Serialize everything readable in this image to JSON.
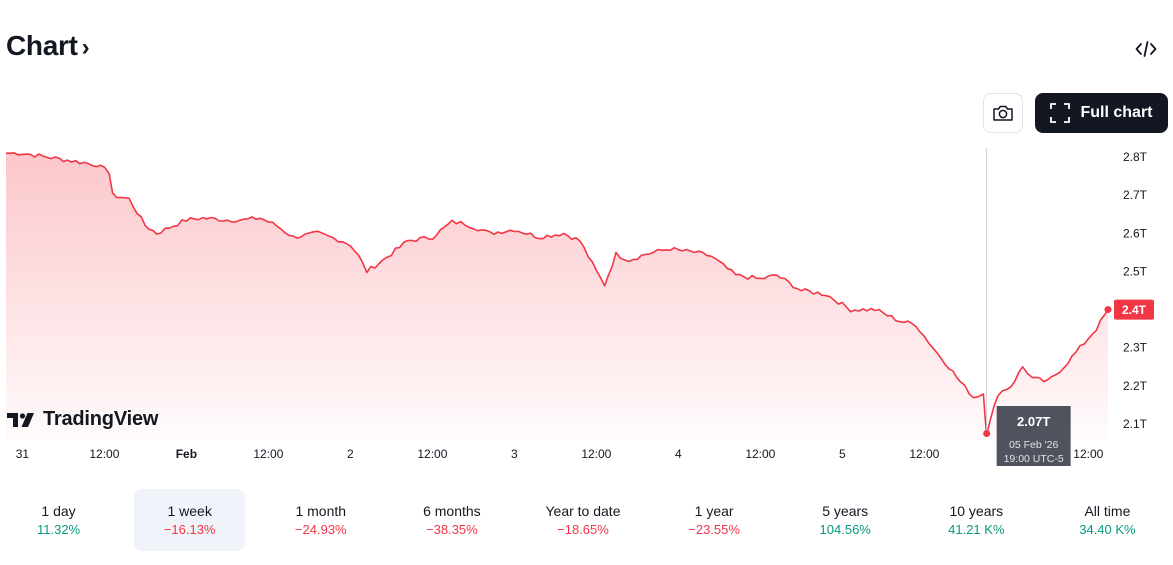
{
  "header": {
    "title": "Chart",
    "chevron": "›"
  },
  "toolbar": {
    "embed_icon": "code-icon",
    "camera_icon": "camera-icon",
    "full_chart_label": "Full chart",
    "full_chart_icon": "fullscreen-icon"
  },
  "brand": {
    "logo_text": "TradingView"
  },
  "colors": {
    "line": "#f23645",
    "positive": "#089981",
    "negative": "#f23645",
    "active_bg": "#f0f3fa",
    "button_dark": "#131722"
  },
  "chart_data": {
    "type": "area",
    "ylim": [
      2.06,
      2.83
    ],
    "y_ticks": [
      2.1,
      2.2,
      2.3,
      2.4,
      2.5,
      2.6,
      2.7,
      2.8
    ],
    "y_tick_labels": [
      "2.1T",
      "2.2T",
      "2.3T",
      "2.4T",
      "2.5T",
      "2.6T",
      "2.7T",
      "2.8T"
    ],
    "x_tick_labels": [
      "31",
      "12:00",
      "Feb",
      "12:00",
      "2",
      "12:00",
      "3",
      "12:00",
      "4",
      "12:00",
      "5",
      "12:00",
      "12:00"
    ],
    "x_ticks": [
      0.0,
      0.5,
      1.0,
      1.5,
      2.0,
      2.5,
      3.0,
      3.5,
      4.0,
      4.5,
      5.0,
      5.5,
      6.5
    ],
    "x_bold": [
      false,
      false,
      true,
      false,
      false,
      false,
      false,
      false,
      false,
      false,
      false,
      false,
      false
    ],
    "points": [
      [
        -0.1,
        2.81
      ],
      [
        0.0,
        2.81
      ],
      [
        0.15,
        2.8
      ],
      [
        0.3,
        2.79
      ],
      [
        0.45,
        2.78
      ],
      [
        0.53,
        2.76
      ],
      [
        0.55,
        2.7
      ],
      [
        0.65,
        2.69
      ],
      [
        0.75,
        2.62
      ],
      [
        0.82,
        2.6
      ],
      [
        0.92,
        2.62
      ],
      [
        1.0,
        2.635
      ],
      [
        1.1,
        2.64
      ],
      [
        1.25,
        2.635
      ],
      [
        1.35,
        2.635
      ],
      [
        1.45,
        2.64
      ],
      [
        1.55,
        2.62
      ],
      [
        1.65,
        2.59
      ],
      [
        1.8,
        2.6
      ],
      [
        1.95,
        2.58
      ],
      [
        2.0,
        2.57
      ],
      [
        2.05,
        2.54
      ],
      [
        2.1,
        2.5
      ],
      [
        2.2,
        2.53
      ],
      [
        2.35,
        2.58
      ],
      [
        2.5,
        2.59
      ],
      [
        2.62,
        2.63
      ],
      [
        2.7,
        2.625
      ],
      [
        2.85,
        2.6
      ],
      [
        3.0,
        2.61
      ],
      [
        3.15,
        2.59
      ],
      [
        3.3,
        2.6
      ],
      [
        3.4,
        2.58
      ],
      [
        3.5,
        2.5
      ],
      [
        3.55,
        2.465
      ],
      [
        3.62,
        2.545
      ],
      [
        3.7,
        2.53
      ],
      [
        3.8,
        2.545
      ],
      [
        3.95,
        2.56
      ],
      [
        4.0,
        2.555
      ],
      [
        4.1,
        2.55
      ],
      [
        4.2,
        2.54
      ],
      [
        4.35,
        2.49
      ],
      [
        4.5,
        2.48
      ],
      [
        4.6,
        2.49
      ],
      [
        4.75,
        2.45
      ],
      [
        4.9,
        2.44
      ],
      [
        5.05,
        2.4
      ],
      [
        5.2,
        2.4
      ],
      [
        5.35,
        2.37
      ],
      [
        5.45,
        2.36
      ],
      [
        5.5,
        2.33
      ],
      [
        5.58,
        2.285
      ],
      [
        5.65,
        2.25
      ],
      [
        5.72,
        2.21
      ],
      [
        5.8,
        2.17
      ],
      [
        5.86,
        2.18
      ],
      [
        5.88,
        2.075
      ],
      [
        5.95,
        2.18
      ],
      [
        6.03,
        2.2
      ],
      [
        6.1,
        2.25
      ],
      [
        6.16,
        2.22
      ],
      [
        6.25,
        2.21
      ],
      [
        6.35,
        2.25
      ],
      [
        6.45,
        2.3
      ],
      [
        6.55,
        2.35
      ],
      [
        6.62,
        2.4
      ]
    ],
    "last_value_label": "2.4T",
    "crosshair": {
      "x": 5.88,
      "value_label": "2.07T",
      "date_label": "05 Feb '26",
      "time_label": "19:00 UTC-5"
    }
  },
  "periods": [
    {
      "label": "1 day",
      "change": "11.32%",
      "dir": "pos"
    },
    {
      "label": "1 week",
      "change": "−16.13%",
      "dir": "neg",
      "active": true
    },
    {
      "label": "1 month",
      "change": "−24.93%",
      "dir": "neg"
    },
    {
      "label": "6 months",
      "change": "−38.35%",
      "dir": "neg"
    },
    {
      "label": "Year to date",
      "change": "−18.65%",
      "dir": "neg"
    },
    {
      "label": "1 year",
      "change": "−23.55%",
      "dir": "neg"
    },
    {
      "label": "5 years",
      "change": "104.56%",
      "dir": "pos"
    },
    {
      "label": "10 years",
      "change": "41.21 K%",
      "dir": "pos"
    },
    {
      "label": "All time",
      "change": "34.40 K%",
      "dir": "pos"
    }
  ]
}
